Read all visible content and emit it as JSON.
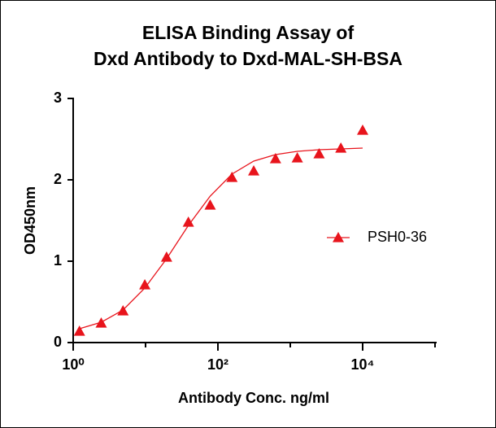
{
  "chart_data": {
    "type": "scatter",
    "title": [
      "ELISA Binding Assay of",
      "Dxd Antibody to Dxd-MAL-SH-BSA"
    ],
    "xlabel": "Antibody Conc. ng/ml",
    "ylabel": "OD450nm",
    "xscale": "log",
    "xlim": [
      1,
      100000
    ],
    "xticks": [
      {
        "value": 1,
        "label": "10⁰"
      },
      {
        "value": 100,
        "label": "10²"
      },
      {
        "value": 10000,
        "label": "10⁴"
      }
    ],
    "xminorticks": [
      10,
      1000,
      100000
    ],
    "ylim": [
      0,
      3
    ],
    "yticks": [
      0,
      1,
      2,
      3
    ],
    "legend": "right",
    "series": [
      {
        "name": "PSH0-36",
        "color": "#e8141c",
        "x": [
          1.22,
          2.44,
          4.88,
          9.77,
          19.53,
          39.06,
          78.125,
          156.25,
          312.5,
          625,
          1250,
          2500,
          5000,
          10000
        ],
        "values": [
          0.14,
          0.24,
          0.39,
          0.71,
          1.05,
          1.48,
          1.69,
          2.03,
          2.11,
          2.26,
          2.27,
          2.32,
          2.39,
          2.61
        ],
        "fit": [
          0.17,
          0.25,
          0.4,
          0.67,
          1.03,
          1.44,
          1.8,
          2.07,
          2.23,
          2.31,
          2.35,
          2.37,
          2.38,
          2.39
        ]
      }
    ]
  }
}
